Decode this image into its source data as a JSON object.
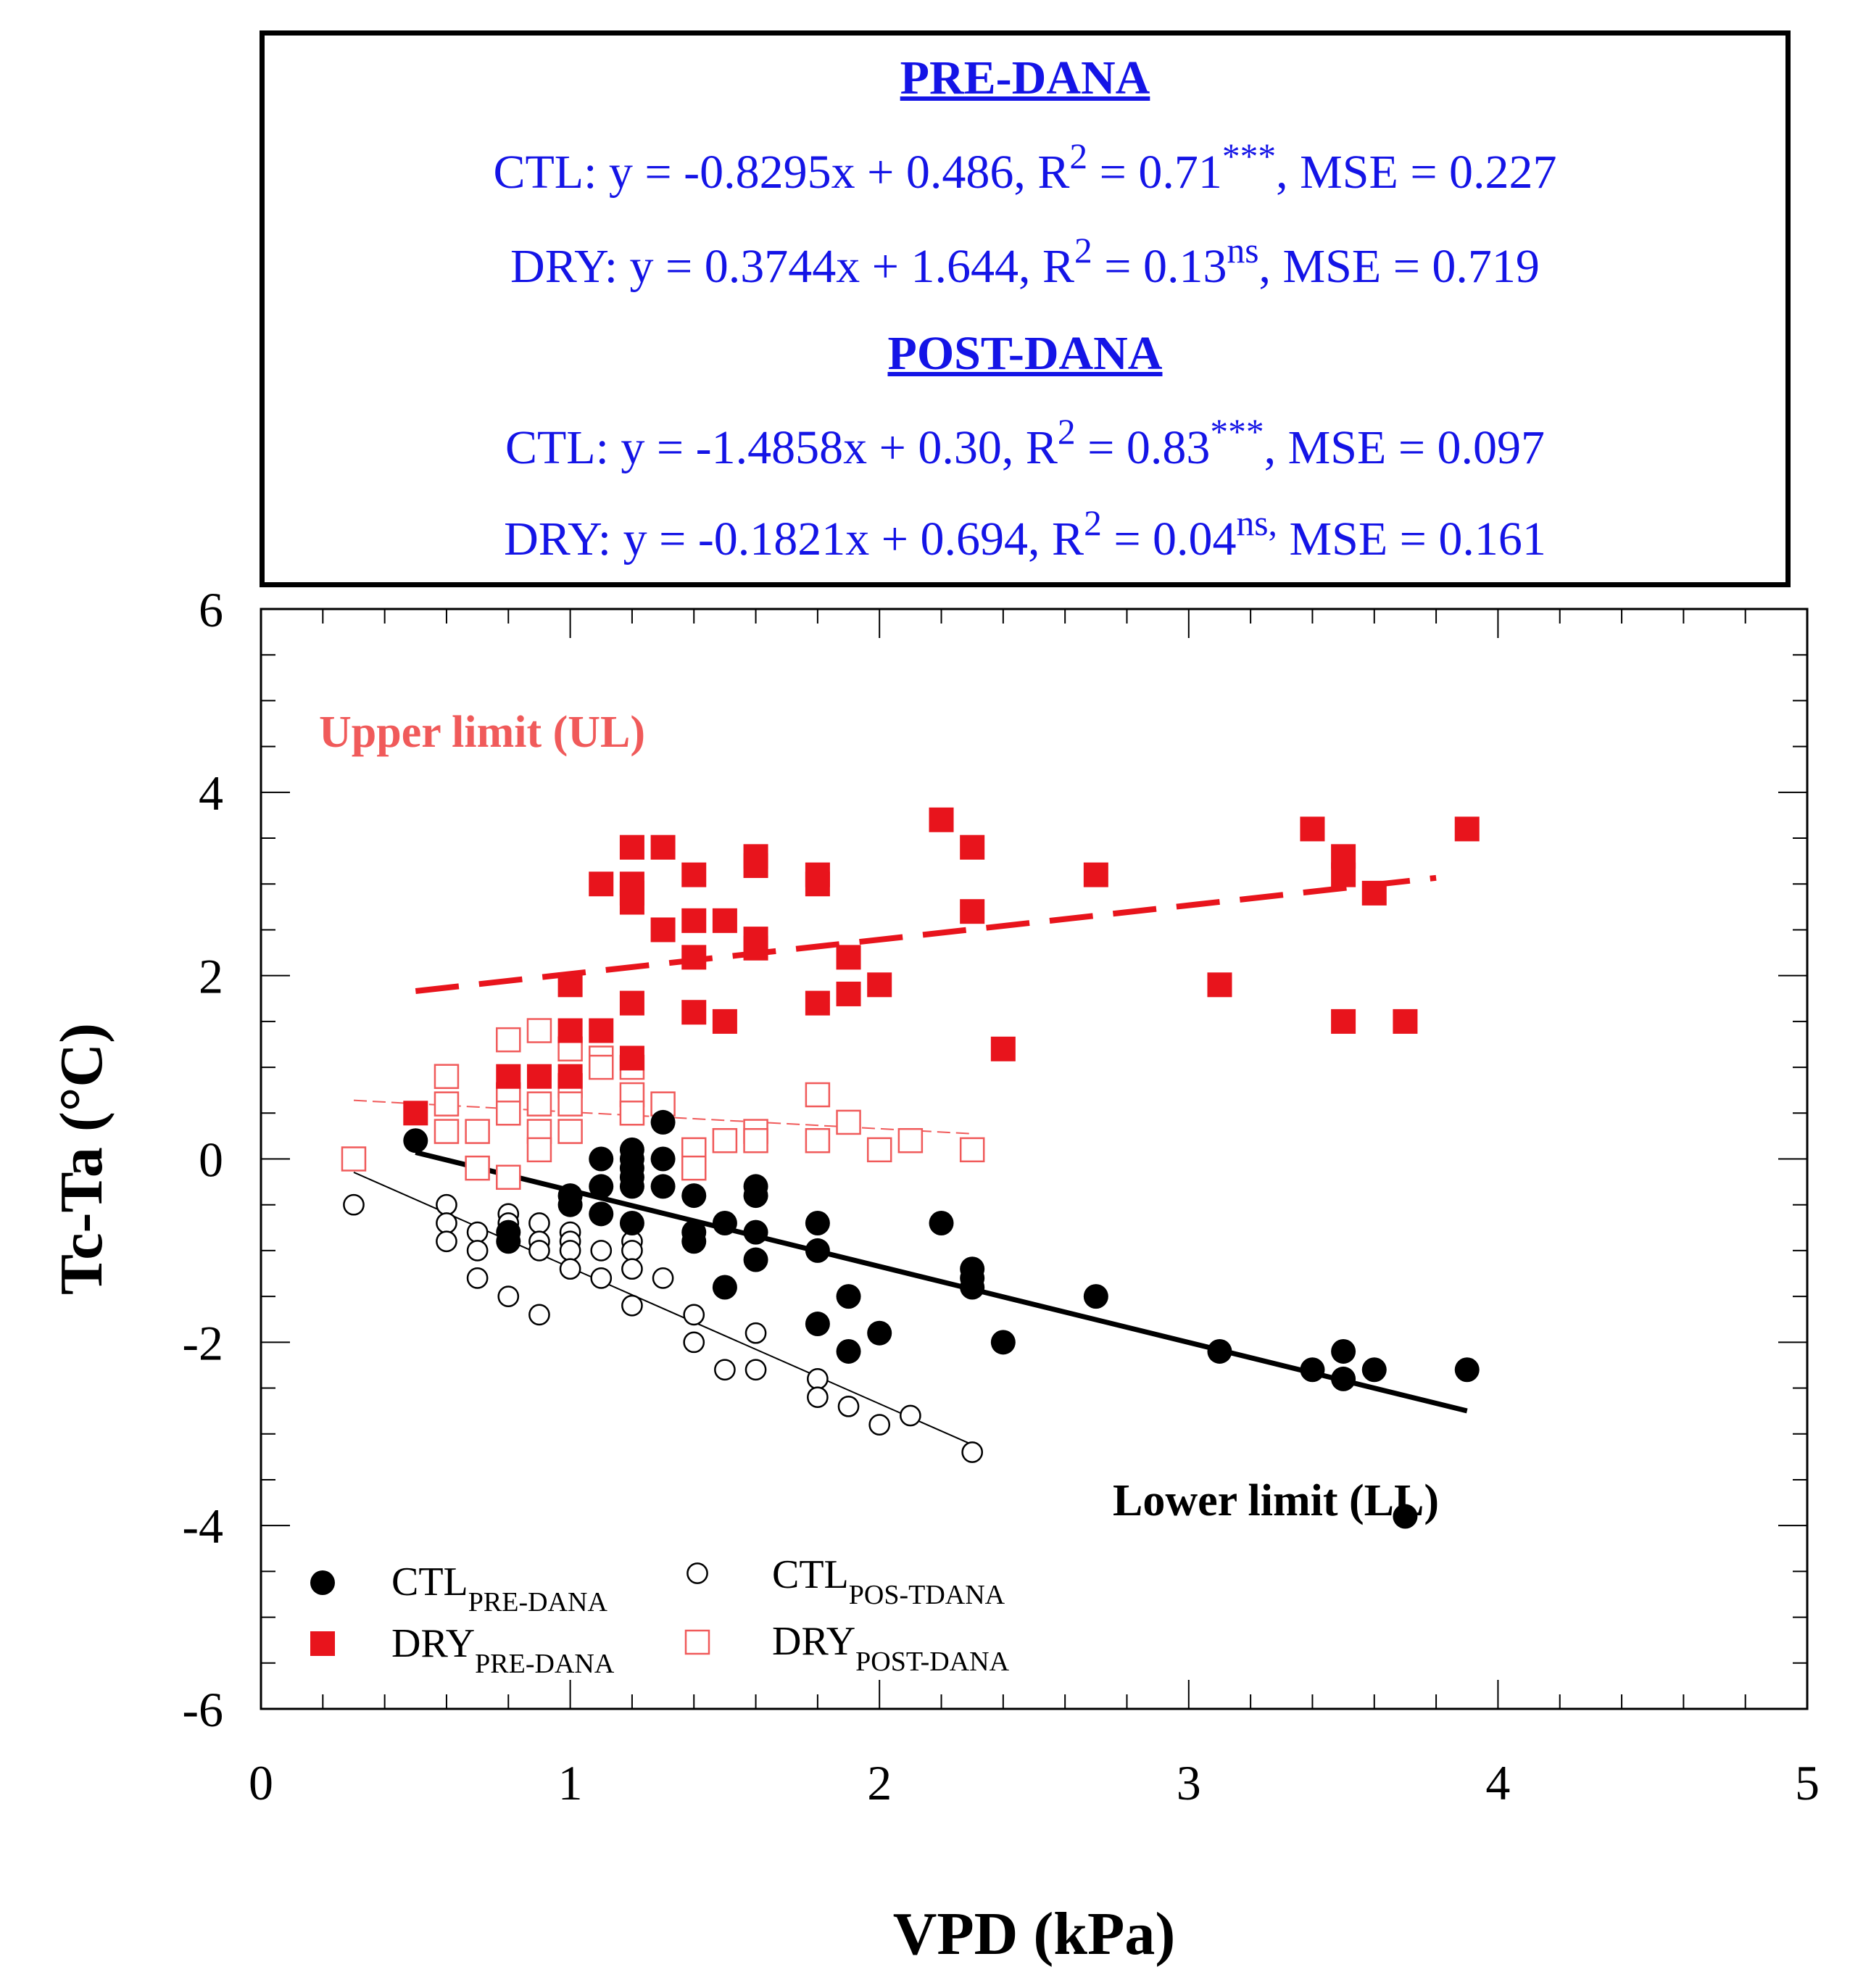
{
  "equations": {
    "pre_heading": "PRE-DANA",
    "pre_ctl": {
      "a": "CTL: y = -0.8295x + 0.486, R",
      "sup": "2",
      "b": " = 0.71",
      "sig": "***",
      "c": ", MSE = 0.227"
    },
    "pre_dry": {
      "a": "DRY: y = 0.3744x + 1.644, R",
      "sup": "2",
      "b": " = 0.13",
      "sig": "ns",
      "c": ", MSE = 0.719"
    },
    "post_heading": "POST-DANA",
    "post_ctl": {
      "a": "CTL: y = -1.4858x + 0.30, R",
      "sup": "2",
      "b": " = 0.83",
      "sig": "***",
      "c": ", MSE = 0.097"
    },
    "post_dry": {
      "a": "DRY: y = -0.1821x + 0.694, R",
      "sup": "2",
      "b": " = 0.04",
      "sig": "ns,",
      "c": " MSE = 0.161"
    }
  },
  "colors": {
    "red": "#e8141c",
    "black": "#000000",
    "light_red": "#f05a5a",
    "blue": "#1414e6"
  },
  "chart_data": {
    "type": "scatter",
    "xlabel": "VPD (kPa)",
    "ylabel": "Tc-Ta (°C)",
    "xlim": [
      0,
      5
    ],
    "ylim": [
      -6,
      6
    ],
    "xticks": [
      "0",
      "1",
      "2",
      "3",
      "4",
      "5"
    ],
    "yticks": [
      "-6",
      "-4",
      "-2",
      "0",
      "2",
      "4",
      "6"
    ],
    "annotations": {
      "upper": "Upper limit (UL)",
      "lower": "Lower limit (LL)"
    },
    "series": [
      {
        "key": "ctl_pre",
        "legend": {
          "main": "CTL",
          "sub": "PRE-DANA"
        },
        "marker": "filled-circle",
        "points": [
          [
            0.5,
            0.2
          ],
          [
            0.8,
            -0.8
          ],
          [
            0.8,
            -0.9
          ],
          [
            1.0,
            -0.4
          ],
          [
            1.0,
            -0.5
          ],
          [
            1.1,
            0
          ],
          [
            1.1,
            -0.3
          ],
          [
            1.1,
            -0.6
          ],
          [
            1.2,
            0.1
          ],
          [
            1.2,
            0
          ],
          [
            1.2,
            -0.1
          ],
          [
            1.2,
            -0.2
          ],
          [
            1.2,
            -0.3
          ],
          [
            1.2,
            -0.7
          ],
          [
            1.3,
            0.4
          ],
          [
            1.3,
            0
          ],
          [
            1.3,
            -0.3
          ],
          [
            1.4,
            -0.4
          ],
          [
            1.4,
            -0.8
          ],
          [
            1.4,
            -0.9
          ],
          [
            1.5,
            -0.7
          ],
          [
            1.5,
            -1.4
          ],
          [
            1.6,
            -0.3
          ],
          [
            1.6,
            -0.4
          ],
          [
            1.6,
            -0.8
          ],
          [
            1.6,
            -1.1
          ],
          [
            1.8,
            -0.7
          ],
          [
            1.8,
            -1.0
          ],
          [
            1.8,
            -1.8
          ],
          [
            1.9,
            -1.5
          ],
          [
            1.9,
            -2.1
          ],
          [
            2.0,
            -1.9
          ],
          [
            2.2,
            -0.7
          ],
          [
            2.3,
            -1.2
          ],
          [
            2.3,
            -1.3
          ],
          [
            2.3,
            -1.4
          ],
          [
            2.4,
            -2.0
          ],
          [
            2.7,
            -1.5
          ],
          [
            3.1,
            -2.1
          ],
          [
            3.4,
            -2.3
          ],
          [
            3.5,
            -2.1
          ],
          [
            3.5,
            -2.4
          ],
          [
            3.6,
            -2.3
          ],
          [
            3.7,
            -3.9
          ],
          [
            3.9,
            -2.3
          ]
        ],
        "fit": {
          "slope": -0.8295,
          "intercept": 0.486,
          "x0": 0.5,
          "x1": 3.9
        }
      },
      {
        "key": "dry_pre",
        "legend": {
          "main": "DRY",
          "sub": "PRE-DANA"
        },
        "marker": "filled-square",
        "points": [
          [
            0.5,
            0.5
          ],
          [
            0.8,
            0.9
          ],
          [
            0.9,
            0.9
          ],
          [
            1.0,
            1.9
          ],
          [
            1.0,
            1.4
          ],
          [
            1.0,
            0.9
          ],
          [
            1.1,
            3.0
          ],
          [
            1.1,
            1.4
          ],
          [
            1.2,
            3.4
          ],
          [
            1.2,
            3.0
          ],
          [
            1.2,
            2.9
          ],
          [
            1.2,
            2.8
          ],
          [
            1.2,
            1.7
          ],
          [
            1.2,
            1.1
          ],
          [
            1.3,
            3.4
          ],
          [
            1.3,
            2.5
          ],
          [
            1.4,
            3.1
          ],
          [
            1.4,
            2.6
          ],
          [
            1.4,
            2.2
          ],
          [
            1.4,
            1.6
          ],
          [
            1.5,
            2.6
          ],
          [
            1.5,
            1.5
          ],
          [
            1.6,
            3.3
          ],
          [
            1.6,
            3.2
          ],
          [
            1.6,
            2.4
          ],
          [
            1.6,
            2.3
          ],
          [
            1.8,
            3.1
          ],
          [
            1.8,
            3.0
          ],
          [
            1.8,
            1.7
          ],
          [
            1.9,
            2.2
          ],
          [
            1.9,
            1.8
          ],
          [
            2.0,
            1.9
          ],
          [
            2.2,
            3.7
          ],
          [
            2.3,
            3.4
          ],
          [
            2.3,
            2.7
          ],
          [
            2.4,
            1.2
          ],
          [
            2.7,
            3.1
          ],
          [
            3.1,
            1.9
          ],
          [
            3.4,
            3.6
          ],
          [
            3.5,
            3.3
          ],
          [
            3.5,
            3.1
          ],
          [
            3.5,
            1.5
          ],
          [
            3.6,
            2.9
          ],
          [
            3.7,
            1.5
          ],
          [
            3.9,
            3.6
          ]
        ],
        "fit": {
          "slope": 0.3744,
          "intercept": 1.644,
          "x0": 0.5,
          "x1": 3.8
        }
      },
      {
        "key": "ctl_post",
        "legend": {
          "main": "CTL",
          "sub": "POS-TDANA"
        },
        "marker": "open-circle",
        "points": [
          [
            0.3,
            -0.5
          ],
          [
            0.6,
            -0.5
          ],
          [
            0.6,
            -0.7
          ],
          [
            0.6,
            -0.9
          ],
          [
            0.7,
            -0.8
          ],
          [
            0.7,
            -1.0
          ],
          [
            0.7,
            -1.3
          ],
          [
            0.8,
            -0.6
          ],
          [
            0.8,
            -0.7
          ],
          [
            0.8,
            -0.8
          ],
          [
            0.8,
            -1.5
          ],
          [
            0.9,
            -0.7
          ],
          [
            0.9,
            -0.9
          ],
          [
            0.9,
            -1.0
          ],
          [
            0.9,
            -1.7
          ],
          [
            1.0,
            -0.8
          ],
          [
            1.0,
            -0.9
          ],
          [
            1.0,
            -1.0
          ],
          [
            1.0,
            -1.2
          ],
          [
            1.1,
            -1.0
          ],
          [
            1.1,
            -1.3
          ],
          [
            1.2,
            -0.9
          ],
          [
            1.2,
            -1.0
          ],
          [
            1.2,
            -1.2
          ],
          [
            1.2,
            -1.6
          ],
          [
            1.3,
            -1.3
          ],
          [
            1.4,
            -1.7
          ],
          [
            1.4,
            -2.0
          ],
          [
            1.5,
            -2.3
          ],
          [
            1.6,
            -1.9
          ],
          [
            1.6,
            -2.3
          ],
          [
            1.8,
            -2.4
          ],
          [
            1.8,
            -2.6
          ],
          [
            1.9,
            -2.7
          ],
          [
            2.0,
            -2.9
          ],
          [
            2.1,
            -2.8
          ],
          [
            2.3,
            -3.2
          ]
        ],
        "fit": {
          "slope": -1.4858,
          "intercept": 0.3,
          "x0": 0.3,
          "x1": 2.3
        }
      },
      {
        "key": "dry_post",
        "legend": {
          "main": "DRY",
          "sub": "POST-DANA"
        },
        "marker": "open-square",
        "points": [
          [
            0.3,
            0
          ],
          [
            0.6,
            0.9
          ],
          [
            0.6,
            0.6
          ],
          [
            0.6,
            0.3
          ],
          [
            0.7,
            0.3
          ],
          [
            0.7,
            -0.1
          ],
          [
            0.8,
            1.3
          ],
          [
            0.8,
            0.7
          ],
          [
            0.8,
            0.5
          ],
          [
            0.8,
            -0.2
          ],
          [
            0.9,
            1.4
          ],
          [
            0.9,
            0.6
          ],
          [
            0.9,
            0.3
          ],
          [
            0.9,
            0.1
          ],
          [
            1.0,
            1.2
          ],
          [
            1.0,
            0.8
          ],
          [
            1.0,
            0.6
          ],
          [
            1.0,
            0.3
          ],
          [
            1.1,
            1.1
          ],
          [
            1.1,
            1.0
          ],
          [
            1.2,
            1.0
          ],
          [
            1.2,
            0.7
          ],
          [
            1.2,
            0.5
          ],
          [
            1.3,
            0.6
          ],
          [
            1.4,
            0.1
          ],
          [
            1.4,
            -0.1
          ],
          [
            1.5,
            0.2
          ],
          [
            1.6,
            0.3
          ],
          [
            1.6,
            0.2
          ],
          [
            1.8,
            0.7
          ],
          [
            1.8,
            0.2
          ],
          [
            1.9,
            0.4
          ],
          [
            2.0,
            0.1
          ],
          [
            2.1,
            0.2
          ],
          [
            2.3,
            0.1
          ]
        ],
        "fit": {
          "slope": -0.1821,
          "intercept": 0.694,
          "x0": 0.3,
          "x1": 2.3
        }
      }
    ]
  }
}
